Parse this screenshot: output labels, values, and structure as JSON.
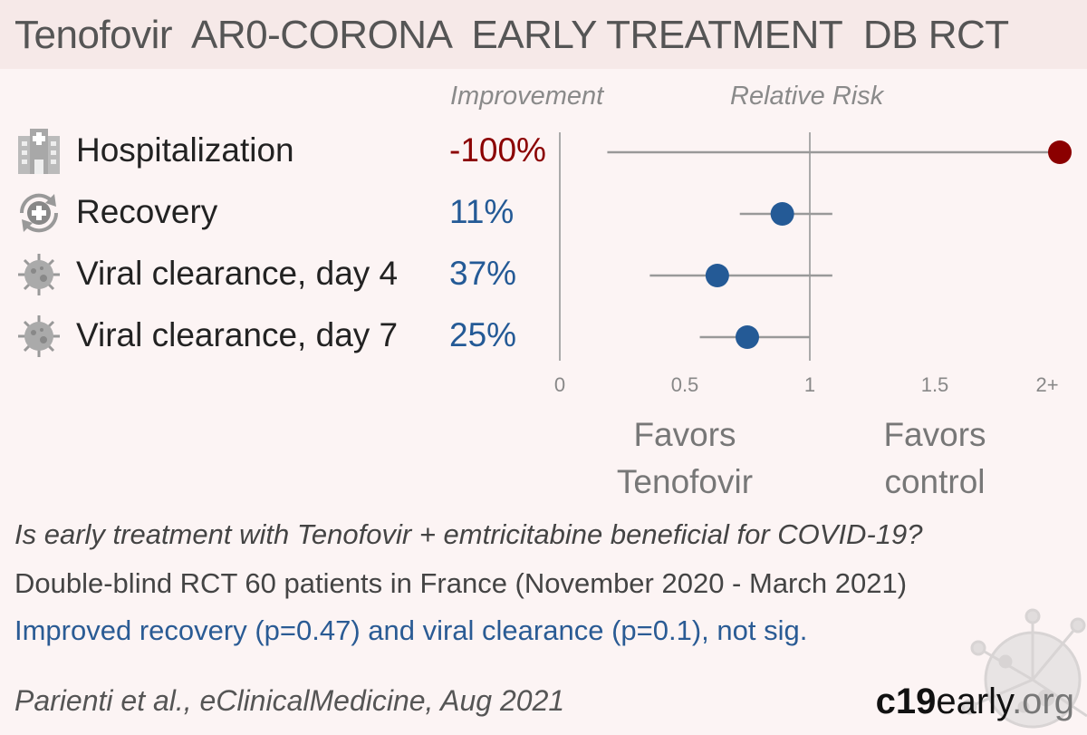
{
  "title": "Tenofovir  AR0-CORONA  EARLY TREATMENT  DB RCT",
  "column_headers": {
    "improvement": "Improvement",
    "relative_risk": "Relative Risk"
  },
  "chart_data": {
    "type": "forest",
    "xlim": [
      0,
      2
    ],
    "x_ticks": [
      "0",
      "0.5",
      "1",
      "1.5",
      "2+"
    ],
    "x_tick_values": [
      0,
      0.5,
      1,
      1.5,
      2
    ],
    "favors_left": "Favors\nTenofovir",
    "favors_right": "Favors\ncontrol",
    "rows": [
      {
        "outcome": "Hospitalization",
        "improvement": "-100%",
        "rr": 2.0,
        "ci_low": 0.19,
        "ci_high": 2.0,
        "color": "#8b0000",
        "icon": "hospital-icon"
      },
      {
        "outcome": "Recovery",
        "improvement": "11%",
        "rr": 0.89,
        "ci_low": 0.72,
        "ci_high": 1.09,
        "color": "#245a96",
        "icon": "recovery-icon"
      },
      {
        "outcome": "Viral clearance, day 4",
        "improvement": "37%",
        "rr": 0.63,
        "ci_low": 0.36,
        "ci_high": 1.09,
        "color": "#245a96",
        "icon": "virus-icon"
      },
      {
        "outcome": "Viral clearance, day 7",
        "improvement": "25%",
        "rr": 0.75,
        "ci_low": 0.56,
        "ci_high": 1.0,
        "color": "#245a96",
        "icon": "virus-icon"
      }
    ]
  },
  "question": "Is early treatment with Tenofovir + emtricitabine beneficial for COVID-19?",
  "design": "Double-blind RCT 60 patients in France (November 2020 - March 2021)",
  "result": "Improved recovery (p=0.47) and viral clearance (p=0.1), not sig.",
  "citation": "Parienti et al., eClinicalMedicine, Aug 2021",
  "brand": {
    "part1": "c19",
    "part2": "early",
    "part3": ".org"
  },
  "colors": {
    "harm": "#8b0000",
    "benefit": "#245a96",
    "header_bg": "#f6e9e8",
    "page_bg": "#fcf4f4"
  }
}
